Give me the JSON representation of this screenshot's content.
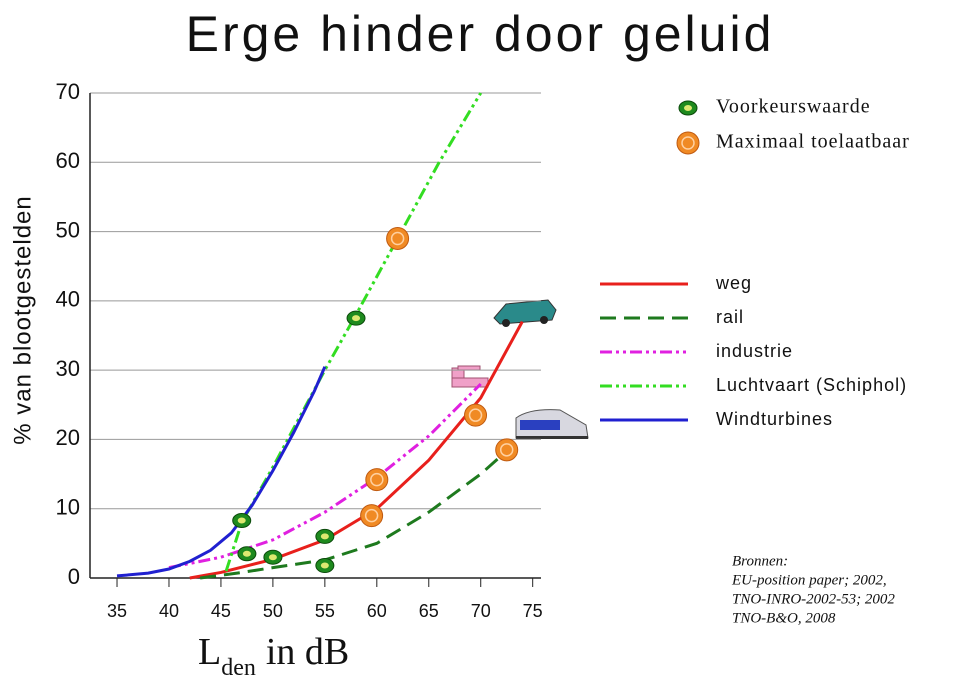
{
  "chart_data": {
    "type": "line",
    "title": "Erge hinder door geluid",
    "ylabel": "% van blootgestelden",
    "xlabel": {
      "main": "L",
      "sub": "den",
      "rest": "in dB"
    },
    "xlim": [
      32.4,
      75.8
    ],
    "ylim": [
      0,
      70
    ],
    "xticks": [
      35,
      40,
      45,
      50,
      55,
      60,
      65,
      70,
      75
    ],
    "yticks": [
      0,
      10,
      20,
      30,
      40,
      50,
      60,
      70
    ],
    "grid": true,
    "series": [
      {
        "name": "Voorkeurswaarde",
        "type": "scatter",
        "color": "#1e8a1e",
        "x": [
          47,
          47.5,
          50,
          55,
          55,
          58
        ],
        "values": [
          8.3,
          3.5,
          3,
          6,
          1.8,
          37.5
        ]
      },
      {
        "name": "Maximaal toelaatbaar",
        "type": "scatter",
        "color": "#f08a24",
        "x": [
          62,
          59.5,
          60,
          69.5,
          72.5
        ],
        "values": [
          49,
          9,
          14.2,
          23.5,
          18.5
        ]
      },
      {
        "name": "weg",
        "type": "line",
        "color": "#e8201c",
        "dash": "solid",
        "x": [
          42,
          45,
          50,
          55,
          60,
          65,
          70,
          74
        ],
        "values": [
          0,
          0.8,
          2.7,
          5.5,
          10,
          17,
          26,
          37
        ]
      },
      {
        "name": "rail",
        "type": "line",
        "color": "#1e7a1e",
        "dash": "dashed",
        "x": [
          43,
          47,
          50,
          55,
          60,
          65,
          70,
          73
        ],
        "values": [
          0,
          0.8,
          1.5,
          2.6,
          5,
          9.5,
          15,
          19
        ]
      },
      {
        "name": "industrie",
        "type": "line",
        "color": "#e020e0",
        "dash": "dashdotdot",
        "x": [
          40,
          45,
          50,
          55,
          60,
          65,
          70
        ],
        "values": [
          1.5,
          3,
          5.5,
          9.5,
          14.5,
          20.5,
          28
        ]
      },
      {
        "name": "Luchtvaart (Schiphol)",
        "type": "line",
        "color": "#33dd22",
        "dash": "dashdotdot",
        "x": [
          45.5,
          47,
          50,
          55,
          58,
          62,
          66,
          70
        ],
        "values": [
          1,
          8,
          16,
          30,
          38,
          49,
          60,
          70
        ]
      },
      {
        "name": "Windturbines",
        "type": "line",
        "color": "#2020d0",
        "dash": "solid",
        "x": [
          35,
          38,
          40,
          42,
          44,
          46,
          48,
          50,
          52,
          54,
          55
        ],
        "values": [
          0.3,
          0.7,
          1.3,
          2.4,
          4,
          6.5,
          10.5,
          15.5,
          21,
          27,
          30.5
        ]
      }
    ],
    "annotation": [
      "Bronnen:",
      "EU-position paper; 2002,",
      "TNO-INRO-2002-53; 2002",
      "TNO-B&O, 2008"
    ]
  }
}
